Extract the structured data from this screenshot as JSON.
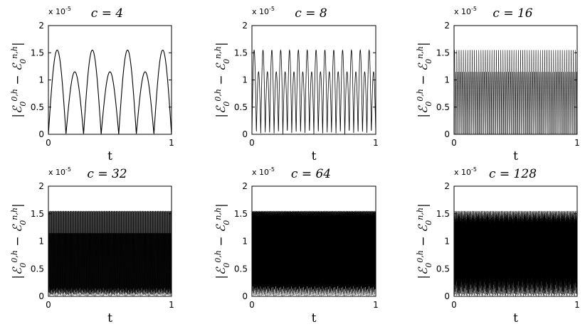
{
  "figure": {
    "panels": [
      {
        "title": "c = 4",
        "c": 4
      },
      {
        "title": "c = 8",
        "c": 8
      },
      {
        "title": "c = 16",
        "c": 16
      },
      {
        "title": "c = 32",
        "c": 32
      },
      {
        "title": "c = 64",
        "c": 64
      },
      {
        "title": "c = 128",
        "c": 128
      }
    ]
  },
  "chart_data": [
    {
      "type": "line",
      "title": "c = 4",
      "xlabel": "t",
      "ylabel": "|E₀^{0,h} − E₀^{n,h}|",
      "y_multiplier": "x 10^-5",
      "xlim": [
        0,
        1
      ],
      "ylim": [
        0,
        2
      ],
      "xticks": [
        "0",
        "1"
      ],
      "yticks": [
        "0",
        "0.5",
        "1",
        "1.5",
        "2"
      ],
      "series": [
        {
          "values": {
            "peak_high": 1.55,
            "peak_low": 1.15,
            "min": 0,
            "oscillation_periods": 7
          }
        }
      ]
    },
    {
      "type": "line",
      "title": "c = 8",
      "xlabel": "t",
      "ylabel": "|E₀^{0,h} − E₀^{n,h}|",
      "y_multiplier": "x 10^-5",
      "xlim": [
        0,
        1
      ],
      "ylim": [
        0,
        2
      ],
      "xticks": [
        "0",
        "1"
      ],
      "yticks": [
        "0",
        "0.5",
        "1",
        "1.5",
        "2"
      ],
      "series": [
        {
          "values": {
            "peak_high": 1.55,
            "peak_low": 1.15,
            "min": 0,
            "oscillation_periods": 28
          }
        }
      ]
    },
    {
      "type": "line",
      "title": "c = 16",
      "xlabel": "t",
      "ylabel": "|E₀^{0,h} − E₀^{n,h}|",
      "y_multiplier": "x 10^-5",
      "xlim": [
        0,
        1
      ],
      "ylim": [
        0,
        2
      ],
      "xticks": [
        "0",
        "1"
      ],
      "yticks": [
        "0",
        "0.5",
        "1",
        "1.5",
        "2"
      ],
      "series": [
        {
          "values": {
            "peak_high": 1.55,
            "peak_low": 1.15,
            "min": 0,
            "oscillation_periods": 112
          }
        }
      ]
    },
    {
      "type": "line",
      "title": "c = 32",
      "xlabel": "t",
      "ylabel": "|E₀^{0,h} − E₀^{n,h}|",
      "y_multiplier": "x 10^-5",
      "xlim": [
        0,
        1
      ],
      "ylim": [
        0,
        2
      ],
      "xticks": [
        "0",
        "1"
      ],
      "yticks": [
        "0",
        "0.5",
        "1",
        "1.5",
        "2"
      ],
      "series": [
        {
          "values": {
            "peak_high": 1.55,
            "peak_low": 1.15,
            "min": 0,
            "oscillation_periods": 448
          }
        }
      ]
    },
    {
      "type": "line",
      "title": "c = 64",
      "xlabel": "t",
      "ylabel": "|E₀^{0,h} − E₀^{n,h}|",
      "y_multiplier": "x 10^-5",
      "xlim": [
        0,
        1
      ],
      "ylim": [
        0,
        2
      ],
      "xticks": [
        "0",
        "1"
      ],
      "yticks": [
        "0",
        "0.5",
        "1",
        "1.5",
        "2"
      ],
      "series": [
        {
          "values": {
            "peak_high": 1.55,
            "peak_low": 1.15,
            "min": 0,
            "oscillation_periods": 1792
          }
        }
      ]
    },
    {
      "type": "line",
      "title": "c = 128",
      "xlabel": "t",
      "ylabel": "|E₀^{0,h} − E₀^{n,h}|",
      "y_multiplier": "x 10^-5",
      "xlim": [
        0,
        1
      ],
      "ylim": [
        0,
        2
      ],
      "xticks": [
        "0",
        "1"
      ],
      "yticks": [
        "0",
        "0.5",
        "1",
        "1.5",
        "2"
      ],
      "series": [
        {
          "values": {
            "peak_high": 1.55,
            "peak_low": 1.15,
            "min": 0,
            "oscillation_periods": 7168
          }
        }
      ]
    }
  ]
}
